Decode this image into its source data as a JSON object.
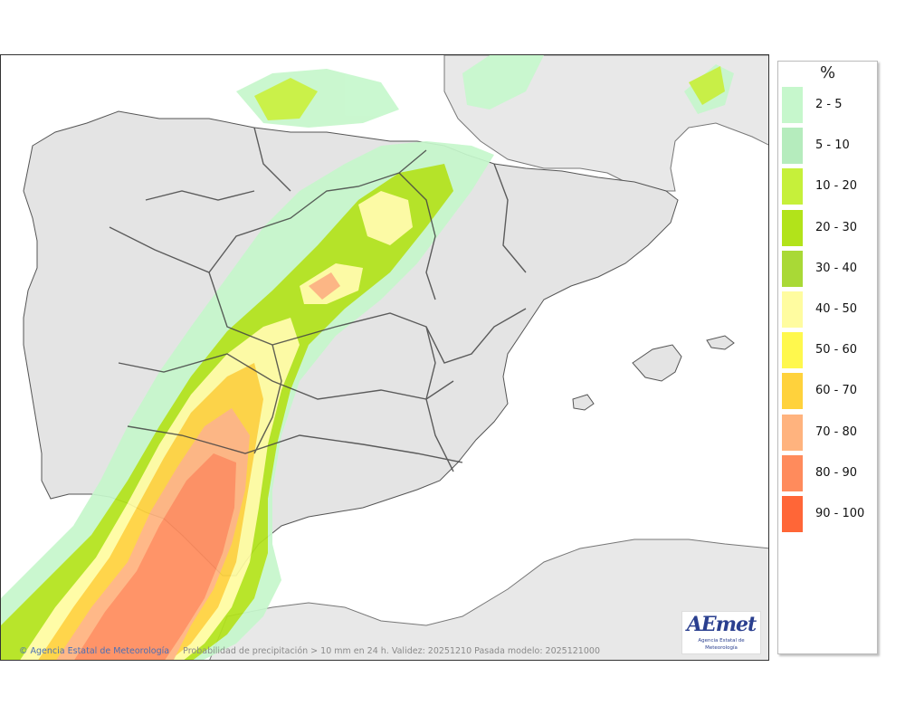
{
  "legend": {
    "unit": "%",
    "classes": [
      {
        "label": "2 - 5",
        "color": "#c6f7cc"
      },
      {
        "label": "5 - 10",
        "color": "#b5ecbd"
      },
      {
        "label": "10 - 20",
        "color": "#c6f03a"
      },
      {
        "label": "20 - 30",
        "color": "#b2e31a"
      },
      {
        "label": "30 - 40",
        "color": "#a9d936"
      },
      {
        "label": "40 - 50",
        "color": "#fffca0"
      },
      {
        "label": "50 - 60",
        "color": "#fff84d"
      },
      {
        "label": "60 - 70",
        "color": "#ffd23c"
      },
      {
        "label": "70 - 80",
        "color": "#ffb37e"
      },
      {
        "label": "80 - 90",
        "color": "#ff8b5c"
      },
      {
        "label": "90 - 100",
        "color": "#ff6637"
      }
    ]
  },
  "footer": {
    "organization": "Agencia Estatal de Meteorología",
    "caption": "Probabilidad de precipitación > 10 mm en 24 h. Validez: 20251210 Pasada modelo: 2025121000"
  },
  "logo": {
    "wordmark": "AEmet",
    "subtitle": "Agencia Estatal de Meteorología"
  },
  "colors": {
    "land": "#e4e4e4",
    "sea": "#ffffff",
    "border": "#444444"
  }
}
